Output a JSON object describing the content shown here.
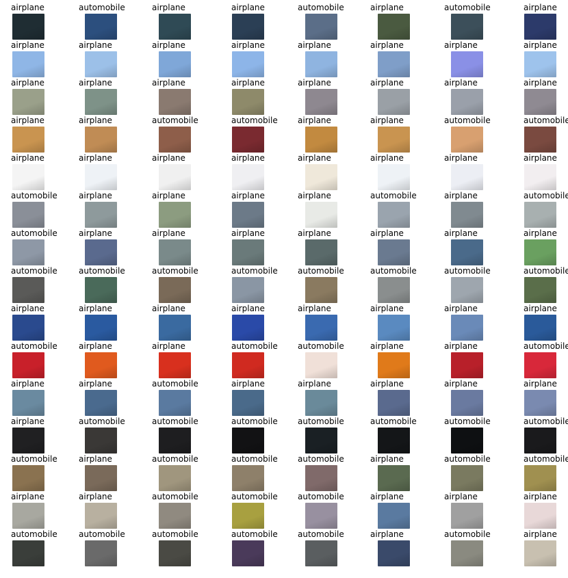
{
  "labels": [
    [
      "airplane",
      "automobile",
      "airplane",
      "airplane",
      "automobile",
      "airplane",
      "automobile",
      "airplane"
    ],
    [
      "airplane",
      "airplane",
      "airplane",
      "airplane",
      "airplane",
      "airplane",
      "airplane",
      "airplane"
    ],
    [
      "airplane",
      "airplane",
      "airplane",
      "airplane",
      "airplane",
      "airplane",
      "airplane",
      "airplane"
    ],
    [
      "airplane",
      "airplane",
      "automobile",
      "automobile",
      "airplane",
      "airplane",
      "automobile",
      "automobile"
    ],
    [
      "airplane",
      "airplane",
      "airplane",
      "airplane",
      "airplane",
      "airplane",
      "airplane",
      "airplane"
    ],
    [
      "automobile",
      "airplane",
      "airplane",
      "airplane",
      "airplane",
      "automobile",
      "airplane",
      "automobile"
    ],
    [
      "automobile",
      "airplane",
      "airplane",
      "airplane",
      "airplane",
      "airplane",
      "airplane",
      "airplane"
    ],
    [
      "automobile",
      "automobile",
      "automobile",
      "automobile",
      "automobile",
      "automobile",
      "automobile",
      "automobile"
    ],
    [
      "airplane",
      "airplane",
      "airplane",
      "airplane",
      "airplane",
      "airplane",
      "airplane",
      "airplane"
    ],
    [
      "automobile",
      "airplane",
      "airplane",
      "automobile",
      "automobile",
      "airplane",
      "airplane",
      "automobile"
    ],
    [
      "airplane",
      "airplane",
      "automobile",
      "airplane",
      "airplane",
      "airplane",
      "airplane",
      "airplane"
    ],
    [
      "airplane",
      "automobile",
      "automobile",
      "automobile",
      "automobile",
      "automobile",
      "automobile",
      "automobile"
    ],
    [
      "automobile",
      "airplane",
      "automobile",
      "automobile",
      "automobile",
      "airplane",
      "automobile",
      "automobile"
    ],
    [
      "airplane",
      "airplane",
      "automobile",
      "automobile",
      "automobile",
      "airplane",
      "airplane",
      "airplane"
    ],
    [
      "automobile",
      "automobile",
      "automobile",
      "automobile",
      "automobile",
      "airplane",
      "automobile",
      "airplane"
    ]
  ],
  "thumb_colors": [
    [
      "#1f2d33",
      "#2c4f7e",
      "#2f4a55",
      "#2b3f55",
      "#5b6e88",
      "#4a5a40",
      "#3c4f5a",
      "#2c3a6a"
    ],
    [
      "#8fb6e6",
      "#9cc0e8",
      "#7fa7d8",
      "#8db5e8",
      "#8fb4e0",
      "#7f9ec8",
      "#8a90e6",
      "#9ec3ec"
    ],
    [
      "#9aa08a",
      "#7e9288",
      "#8a7a70",
      "#8e8a6a",
      "#8e8890",
      "#9aa0a6",
      "#9aa0aa",
      "#8f8a92"
    ],
    [
      "#c99450",
      "#c08c55",
      "#8e5e4a",
      "#7a2a30",
      "#c28a40",
      "#c99450",
      "#d8a070",
      "#7a4a40"
    ],
    [
      "#f4f4f4",
      "#eef2f6",
      "#f0f0f0",
      "#efeff2",
      "#efe8da",
      "#eef2f6",
      "#eceef4",
      "#f2eef0"
    ],
    [
      "#8a8f98",
      "#8e9a9c",
      "#8c9c80",
      "#6c7a88",
      "#e8eae6",
      "#9aa4ae",
      "#808a90",
      "#a8b0b0"
    ],
    [
      "#8e98a6",
      "#5a6a8e",
      "#7a8a8a",
      "#6a7a7a",
      "#5a6a6a",
      "#6a7a90",
      "#4a6a8a",
      "#6aa060"
    ],
    [
      "#5a5a58",
      "#4a6a5a",
      "#7a6a58",
      "#8a96a4",
      "#8a7a60",
      "#8a8e8e",
      "#9ea6ae",
      "#5a6e4a"
    ],
    [
      "#2a4a8e",
      "#2a5aa0",
      "#3a6aa0",
      "#2a4aa8",
      "#3a6ab0",
      "#5a8ac0",
      "#6a8ab8",
      "#2a5a9a"
    ],
    [
      "#c8202a",
      "#e05a1e",
      "#d8301e",
      "#d02a20",
      "#f0e0d8",
      "#e07a1a",
      "#b8202a",
      "#d8283a"
    ],
    [
      "#6a8aa0",
      "#4a6a8e",
      "#5a7aa0",
      "#4a6a8a",
      "#6a8a9a",
      "#5a6a8e",
      "#6a7aa0",
      "#7a8ab0"
    ],
    [
      "#202022",
      "#3a3836",
      "#1e1e20",
      "#121214",
      "#1a2024",
      "#141618",
      "#0e1012",
      "#1a1a1c"
    ],
    [
      "#8a7250",
      "#7a6a5a",
      "#a0967e",
      "#8e806a",
      "#806a6a",
      "#5a6a50",
      "#7a7a60",
      "#a09050"
    ],
    [
      "#a8a8a0",
      "#b8b0a0",
      "#908a80",
      "#a8a040",
      "#9890a0",
      "#5a7aa0",
      "#a0a0a0",
      "#e8d8d8"
    ],
    [
      "#3a3e3a",
      "#6a6a6a",
      "#4a4a44",
      "#4a3a5a",
      "#5a5e60",
      "#3a4a6a",
      "#8a8a80",
      "#c8c0b0"
    ]
  ]
}
